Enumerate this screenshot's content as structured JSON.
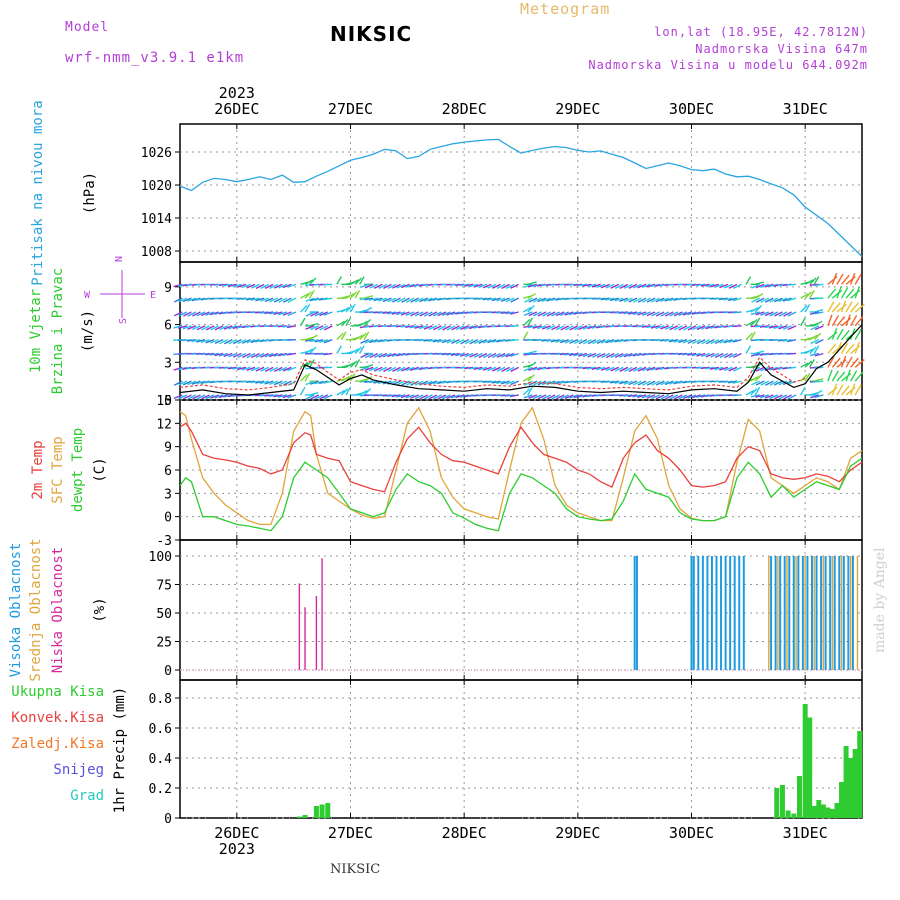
{
  "header": {
    "model_label": "Model",
    "model_name": "wrf-nmm_v3.9.1 e1km",
    "station": "NIKSIC",
    "meteogram_label": "Meteogram",
    "coords": "lon,lat (18.95E, 42.7812N)",
    "elevation": "Nadmorska Visina 647m",
    "elevation_model": "Nadmorska Visina u modelu 644.092m",
    "year": "2023"
  },
  "footer": {
    "station": "NIKSIC",
    "watermark": "made by Angel"
  },
  "colors": {
    "pressure": "#2aa5e0",
    "temp2m": "#e8413c",
    "sfc": "#e0a53c",
    "dewpt": "#2ecc30",
    "cloud_high": "#1f9be0",
    "cloud_mid": "#e0a53c",
    "cloud_low": "#d42a9c",
    "precip": "#2ecc30",
    "ylab_cyan": "#2aa5e0",
    "ylab_green": "#2ecc30",
    "ylab_purple": "#b23fd6"
  },
  "chart_data": [
    {
      "type": "line",
      "panel": "pressure",
      "ylabel": [
        "Pritisak na nivou mora",
        "(hPa)"
      ],
      "yticks": [
        1008,
        1014,
        1020,
        1026
      ],
      "ylim": [
        1006,
        1030
      ],
      "xticks": [
        "26DEC",
        "27DEC",
        "28DEC",
        "29DEC",
        "30DEC",
        "31DEC"
      ],
      "xlim": [
        -0.5,
        5.5
      ],
      "grid": true,
      "series": [
        {
          "x": [
            -0.5,
            -0.4,
            -0.3,
            -0.2,
            -0.1,
            0.0,
            0.1,
            0.2,
            0.3,
            0.4,
            0.5,
            0.6,
            0.7,
            0.8,
            0.9,
            1.0,
            1.1,
            1.2,
            1.3,
            1.4,
            1.5,
            1.6,
            1.7,
            1.8,
            1.9,
            2.0,
            2.1,
            2.2,
            2.3,
            2.4,
            2.5,
            2.6,
            2.7,
            2.8,
            2.9,
            3.0,
            3.1,
            3.2,
            3.3,
            3.4,
            3.5,
            3.6,
            3.7,
            3.8,
            3.9,
            4.0,
            4.1,
            4.2,
            4.3,
            4.4,
            4.5,
            4.6,
            4.7,
            4.8,
            4.9,
            5.0,
            5.1,
            5.2,
            5.3,
            5.4,
            5.5
          ],
          "y": [
            1019.8,
            1019.0,
            1020.5,
            1021.2,
            1021.0,
            1020.6,
            1021.0,
            1021.5,
            1021.0,
            1021.8,
            1020.5,
            1020.6,
            1021.6,
            1022.5,
            1023.5,
            1024.5,
            1025.0,
            1025.6,
            1026.5,
            1026.2,
            1024.8,
            1025.2,
            1026.5,
            1027.0,
            1027.5,
            1027.8,
            1028.0,
            1028.2,
            1028.3,
            1027.0,
            1025.8,
            1026.3,
            1026.7,
            1027.0,
            1026.8,
            1026.3,
            1026.0,
            1026.2,
            1025.6,
            1025.0,
            1024.0,
            1023.0,
            1023.5,
            1024.0,
            1023.5,
            1022.8,
            1022.6,
            1022.9,
            1022.0,
            1021.5,
            1021.6,
            1021.0,
            1020.2,
            1019.5,
            1018.2,
            1016.0,
            1014.5,
            1013.0,
            1011.0,
            1009.0,
            1007.0
          ]
        }
      ]
    },
    {
      "type": "line",
      "panel": "wind",
      "ylabel": [
        "10m Vjetar",
        "Brzina i Pravac",
        "(m/s)"
      ],
      "compass": [
        "N",
        "W",
        "E",
        "S"
      ],
      "yticks": [
        0,
        3,
        6,
        9
      ],
      "ylim": [
        0,
        10.5
      ],
      "grid": true,
      "series": [
        {
          "name": "speed",
          "x": [
            -0.5,
            -0.3,
            -0.1,
            0.1,
            0.3,
            0.5,
            0.6,
            0.7,
            0.8,
            0.9,
            1.0,
            1.1,
            1.2,
            1.4,
            1.6,
            1.8,
            2.0,
            2.2,
            2.4,
            2.6,
            2.8,
            3.0,
            3.2,
            3.4,
            3.6,
            3.8,
            4.0,
            4.2,
            4.4,
            4.5,
            4.6,
            4.7,
            4.8,
            4.9,
            5.0,
            5.1,
            5.2,
            5.3,
            5.4,
            5.5
          ],
          "y": [
            0.6,
            0.8,
            0.5,
            0.4,
            0.6,
            0.8,
            2.8,
            2.4,
            1.8,
            1.2,
            1.7,
            2.0,
            1.6,
            1.2,
            0.9,
            0.8,
            0.7,
            0.9,
            0.8,
            1.1,
            1.0,
            0.7,
            0.6,
            0.7,
            0.6,
            0.5,
            0.8,
            0.9,
            0.7,
            1.4,
            3.0,
            2.0,
            1.5,
            1.0,
            1.3,
            2.5,
            3.0,
            4.0,
            5.0,
            6.0
          ]
        },
        {
          "name": "gust",
          "x": [
            -0.5,
            -0.3,
            -0.1,
            0.1,
            0.3,
            0.5,
            0.6,
            0.7,
            0.8,
            0.9,
            1.0,
            1.1,
            1.2,
            1.4,
            1.6,
            1.8,
            2.0,
            2.2,
            2.4,
            2.6,
            2.8,
            3.0,
            3.2,
            3.4,
            3.6,
            3.8,
            4.0,
            4.2,
            4.4,
            4.5,
            4.6,
            4.7,
            4.8,
            4.9,
            5.0
          ],
          "y": [
            1.0,
            1.2,
            0.9,
            0.8,
            1.0,
            1.3,
            3.2,
            2.9,
            2.2,
            1.6,
            2.2,
            2.4,
            2.0,
            1.6,
            1.3,
            1.1,
            1.0,
            1.2,
            1.1,
            1.4,
            1.3,
            1.0,
            0.9,
            1.0,
            0.9,
            0.8,
            1.1,
            1.2,
            1.0,
            1.8,
            3.4,
            2.5,
            2.0,
            1.4,
            1.7
          ]
        }
      ]
    },
    {
      "type": "line",
      "panel": "temperature",
      "ylabel": [
        "2m Temp",
        "SFC Temp",
        "dewpt Temp",
        "(C)"
      ],
      "yticks": [
        -3,
        0,
        3,
        6,
        9,
        12,
        15
      ],
      "ylim": [
        -3,
        15
      ],
      "grid": true,
      "series": [
        {
          "name": "2m Temp",
          "x": [
            -0.5,
            -0.45,
            -0.4,
            -0.3,
            -0.2,
            -0.1,
            0.0,
            0.1,
            0.2,
            0.3,
            0.4,
            0.5,
            0.6,
            0.65,
            0.7,
            0.8,
            0.9,
            1.0,
            1.1,
            1.2,
            1.3,
            1.4,
            1.5,
            1.6,
            1.7,
            1.8,
            1.9,
            2.0,
            2.1,
            2.2,
            2.3,
            2.4,
            2.5,
            2.6,
            2.7,
            2.8,
            2.9,
            3.0,
            3.1,
            3.2,
            3.3,
            3.4,
            3.5,
            3.6,
            3.7,
            3.8,
            3.9,
            4.0,
            4.1,
            4.2,
            4.3,
            4.4,
            4.5,
            4.6,
            4.7,
            4.8,
            4.9,
            5.0,
            5.1,
            5.2,
            5.3,
            5.4,
            5.5
          ],
          "y": [
            11.5,
            12.0,
            11.0,
            8.0,
            7.5,
            7.3,
            7.0,
            6.5,
            6.2,
            5.5,
            6.0,
            9.5,
            10.8,
            10.5,
            8.0,
            7.5,
            7.2,
            4.5,
            4.0,
            3.5,
            3.2,
            7.0,
            10.0,
            11.5,
            9.5,
            8.0,
            7.2,
            7.0,
            6.5,
            6.0,
            5.5,
            9.0,
            11.5,
            9.5,
            8.0,
            7.5,
            7.0,
            6.0,
            5.5,
            4.5,
            3.8,
            7.5,
            9.5,
            10.5,
            8.5,
            7.5,
            6.0,
            4.0,
            3.8,
            4.0,
            4.5,
            7.5,
            9.0,
            8.5,
            5.5,
            5.0,
            4.8,
            5.0,
            5.5,
            5.2,
            4.5,
            6.0,
            7.0
          ]
        },
        {
          "name": "SFC Temp",
          "x": [
            -0.5,
            -0.45,
            -0.4,
            -0.3,
            -0.2,
            -0.1,
            0.0,
            0.1,
            0.2,
            0.3,
            0.4,
            0.5,
            0.6,
            0.65,
            0.7,
            0.8,
            0.9,
            1.0,
            1.1,
            1.2,
            1.3,
            1.4,
            1.5,
            1.6,
            1.7,
            1.8,
            1.9,
            2.0,
            2.1,
            2.2,
            2.3,
            2.4,
            2.5,
            2.6,
            2.7,
            2.8,
            2.9,
            3.0,
            3.1,
            3.2,
            3.3,
            3.4,
            3.5,
            3.6,
            3.7,
            3.8,
            3.9,
            4.0,
            4.1,
            4.2,
            4.3,
            4.4,
            4.5,
            4.6,
            4.7,
            4.8,
            4.9,
            5.0,
            5.1,
            5.2,
            5.3,
            5.4,
            5.5
          ],
          "y": [
            13.5,
            13.0,
            10.0,
            5.0,
            3.0,
            1.5,
            0.5,
            -0.5,
            -1.0,
            -1.0,
            3.0,
            11.0,
            13.5,
            13.0,
            8.0,
            3.0,
            2.0,
            1.0,
            0.2,
            -0.2,
            0.0,
            6.0,
            12.0,
            14.0,
            11.0,
            5.0,
            2.5,
            1.0,
            0.5,
            0.0,
            -0.3,
            6.0,
            12.0,
            14.0,
            10.0,
            4.0,
            1.5,
            0.5,
            0.0,
            -0.5,
            -0.5,
            5.0,
            11.0,
            13.0,
            10.0,
            4.0,
            1.0,
            -0.2,
            -0.5,
            -0.5,
            0.0,
            7.0,
            12.5,
            11.0,
            5.0,
            4.0,
            3.0,
            4.0,
            5.0,
            4.5,
            3.5,
            7.5,
            8.5
          ]
        },
        {
          "name": "dewpt Temp",
          "x": [
            -0.5,
            -0.45,
            -0.4,
            -0.3,
            -0.2,
            -0.1,
            0.0,
            0.1,
            0.2,
            0.3,
            0.4,
            0.5,
            0.6,
            0.65,
            0.7,
            0.8,
            0.9,
            1.0,
            1.1,
            1.2,
            1.3,
            1.4,
            1.5,
            1.6,
            1.7,
            1.8,
            1.9,
            2.0,
            2.1,
            2.2,
            2.3,
            2.4,
            2.5,
            2.6,
            2.7,
            2.8,
            2.9,
            3.0,
            3.1,
            3.2,
            3.3,
            3.4,
            3.5,
            3.6,
            3.7,
            3.8,
            3.9,
            4.0,
            4.1,
            4.2,
            4.3,
            4.4,
            4.5,
            4.6,
            4.7,
            4.8,
            4.9,
            5.0,
            5.1,
            5.2,
            5.3,
            5.4,
            5.5
          ],
          "y": [
            4.0,
            5.0,
            4.5,
            0.0,
            0.0,
            -0.5,
            -1.0,
            -1.2,
            -1.5,
            -1.8,
            0.0,
            5.0,
            7.0,
            6.5,
            6.0,
            5.0,
            3.0,
            1.0,
            0.5,
            0.0,
            0.5,
            3.5,
            5.5,
            4.5,
            4.0,
            3.0,
            0.5,
            -0.2,
            -1.0,
            -1.5,
            -1.8,
            3.0,
            5.5,
            5.0,
            4.0,
            3.0,
            1.0,
            0.0,
            -0.3,
            -0.5,
            -0.3,
            2.0,
            5.5,
            3.5,
            3.0,
            2.5,
            0.5,
            -0.3,
            -0.5,
            -0.5,
            0.0,
            5.0,
            7.0,
            5.5,
            2.5,
            4.0,
            2.5,
            3.5,
            4.5,
            4.0,
            3.5,
            6.5,
            7.5
          ]
        }
      ]
    },
    {
      "type": "bar",
      "panel": "clouds",
      "ylabel": [
        "Visoka Oblacnost",
        "Srednja Oblacnost",
        "Niska Oblacnost",
        "(%)"
      ],
      "yticks": [
        0,
        25,
        50,
        75,
        100
      ],
      "ylim": [
        0,
        100
      ],
      "grid": true,
      "series": [
        {
          "name": "Niska Oblacnost",
          "x": [
            0.55,
            0.6,
            0.7,
            0.75
          ],
          "values": [
            76,
            55,
            65,
            98
          ]
        },
        {
          "name": "Visoka Oblacnost",
          "x": [
            3.5,
            3.52,
            4.0,
            4.02,
            4.06,
            4.1,
            4.14,
            4.18,
            4.22,
            4.26,
            4.3,
            4.34,
            4.38,
            4.42,
            4.46,
            4.7,
            4.74,
            4.78,
            4.82,
            4.86,
            4.9,
            4.94,
            4.98,
            5.02,
            5.06,
            5.1,
            5.14,
            5.18,
            5.22,
            5.26,
            5.3,
            5.34,
            5.38,
            5.42
          ],
          "values": [
            100,
            100,
            100,
            100,
            100,
            100,
            100,
            100,
            100,
            100,
            100,
            100,
            100,
            100,
            100,
            100,
            100,
            100,
            100,
            100,
            100,
            100,
            100,
            100,
            100,
            100,
            100,
            100,
            100,
            100,
            100,
            100,
            100,
            100
          ]
        },
        {
          "name": "Srednja Oblacnost",
          "x": [
            4.68,
            4.76,
            4.84,
            4.92,
            5.0,
            5.08,
            5.16,
            5.24,
            5.32,
            5.4,
            5.46
          ],
          "values": [
            100,
            100,
            100,
            100,
            100,
            100,
            100,
            100,
            100,
            100,
            100
          ]
        }
      ]
    },
    {
      "type": "bar",
      "panel": "precip",
      "ylabel": [
        "1hr Precip (mm)"
      ],
      "legend": [
        "Ukupna Kisa",
        "Konvek.Kisa",
        "Zaledj.Kisa",
        "Snijeg",
        "Grad"
      ],
      "yticks": [
        0,
        0.2,
        0.4,
        0.6,
        0.8
      ],
      "ylim": [
        0,
        0.88
      ],
      "grid": true,
      "series": [
        {
          "name": "Ukupna Kisa",
          "x": [
            0.55,
            0.6,
            0.7,
            0.75,
            0.8,
            4.75,
            4.8,
            4.85,
            4.9,
            4.95,
            5.0,
            5.04,
            5.08,
            5.12,
            5.16,
            5.2,
            5.24,
            5.28,
            5.32,
            5.36,
            5.4,
            5.44,
            5.48
          ],
          "values": [
            0.01,
            0.02,
            0.08,
            0.09,
            0.1,
            0.2,
            0.22,
            0.05,
            0.03,
            0.28,
            0.76,
            0.67,
            0.08,
            0.12,
            0.09,
            0.07,
            0.06,
            0.1,
            0.24,
            0.48,
            0.4,
            0.46,
            0.58
          ]
        }
      ]
    }
  ]
}
